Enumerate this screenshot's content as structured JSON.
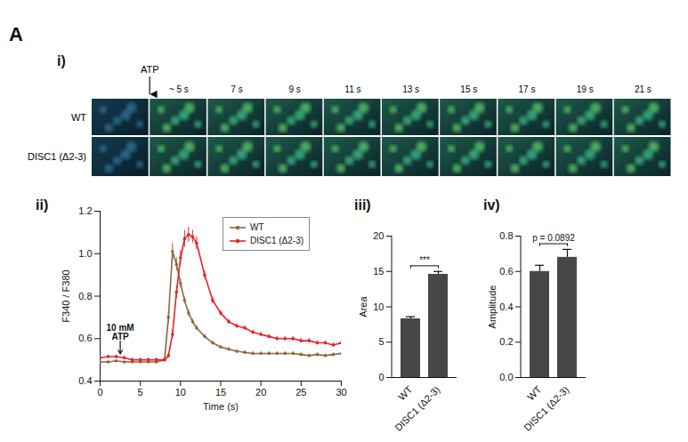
{
  "panel_label": "A",
  "chart_data": [
    {
      "type": "image_strip",
      "title": "i)",
      "marker_label": "ATP",
      "frame_labels": [
        null,
        "~ 5 s",
        "7 s",
        "9 s",
        "11 s",
        "13 s",
        "15 s",
        "17 s",
        "19 s",
        "21 s"
      ],
      "rows": [
        "WT",
        "DISC1 (Δ2-3)"
      ]
    },
    {
      "type": "line",
      "title": "ii)",
      "x_label": "Time (s)",
      "y_label": "F340 / F380",
      "xlim": [
        0,
        30
      ],
      "xticks": [
        0,
        5,
        10,
        15,
        20,
        25,
        30
      ],
      "ylim": [
        0.4,
        1.2
      ],
      "yticks": [
        0.4,
        0.6,
        0.8,
        {
          "value": 1,
          "label": "1.0"
        },
        1.2
      ],
      "legend": "top-right",
      "marker": "circle",
      "annotations": [
        {
          "text": [
            "10 mM",
            "ATP"
          ],
          "x": 2.5,
          "y": 0.52
        }
      ],
      "x": [
        0,
        1,
        2,
        3,
        4,
        5,
        6,
        7,
        8,
        8.5,
        9,
        9.5,
        10,
        10.5,
        11,
        11.5,
        12,
        13,
        14,
        15,
        16,
        17,
        18,
        19,
        20,
        21,
        22,
        23,
        24,
        25,
        26,
        27,
        28,
        29,
        30
      ],
      "series": [
        {
          "name": "WT",
          "color": "#8c6a3c",
          "values": [
            0.49,
            0.49,
            0.495,
            0.49,
            0.49,
            0.49,
            0.49,
            0.49,
            0.5,
            0.7,
            1.01,
            0.95,
            0.86,
            0.78,
            0.72,
            0.68,
            0.65,
            0.61,
            0.58,
            0.56,
            0.55,
            0.54,
            0.535,
            0.53,
            0.53,
            0.53,
            0.53,
            0.53,
            0.53,
            0.525,
            0.52,
            0.525,
            0.52,
            0.525,
            0.53
          ],
          "errors": [
            0.005,
            0.005,
            0.005,
            0.005,
            0.005,
            0.005,
            0.005,
            0.005,
            0.005,
            0.03,
            0.04,
            0.03,
            0.02,
            0.015,
            0.015,
            0.012,
            0.012,
            0.01,
            0.01,
            0.008,
            0.008,
            0.008,
            0.008,
            0.008,
            0.008,
            0.008,
            0.008,
            0.008,
            0.008,
            0.008,
            0.008,
            0.008,
            0.008,
            0.008,
            0.008
          ]
        },
        {
          "name": "DISC1 (Δ2-3)",
          "color": "#e8202a",
          "values": [
            0.51,
            0.515,
            0.515,
            0.51,
            0.5,
            0.5,
            0.5,
            0.5,
            0.5,
            0.52,
            0.62,
            0.82,
            0.98,
            1.07,
            1.09,
            1.08,
            1.05,
            0.9,
            0.78,
            0.72,
            0.68,
            0.66,
            0.65,
            0.63,
            0.62,
            0.61,
            0.6,
            0.6,
            0.6,
            0.59,
            0.59,
            0.58,
            0.58,
            0.57,
            0.58
          ],
          "errors": [
            0.008,
            0.008,
            0.008,
            0.008,
            0.008,
            0.008,
            0.008,
            0.008,
            0.008,
            0.01,
            0.02,
            0.03,
            0.035,
            0.04,
            0.035,
            0.03,
            0.03,
            0.02,
            0.015,
            0.012,
            0.01,
            0.01,
            0.01,
            0.01,
            0.01,
            0.01,
            0.01,
            0.01,
            0.01,
            0.01,
            0.01,
            0.01,
            0.01,
            0.01,
            0.01
          ]
        }
      ]
    },
    {
      "type": "bar",
      "title": "iii)",
      "y_label": "Area",
      "categories": [
        "WT",
        "DISC1 (Δ2-3)"
      ],
      "values": [
        8.3,
        14.6
      ],
      "errors": [
        0.3,
        0.4
      ],
      "color": "#474747",
      "ylim": [
        0,
        20
      ],
      "yticks": [
        0,
        5,
        10,
        15,
        20
      ],
      "annotations": [
        {
          "text": "***"
        }
      ]
    },
    {
      "type": "bar",
      "title": "iv)",
      "y_label": "Amplitude",
      "categories": [
        "WT",
        "DISC1 (Δ2-3)"
      ],
      "values": [
        0.6,
        0.68
      ],
      "errors": [
        0.035,
        0.045
      ],
      "color": "#474747",
      "ylim": [
        0,
        0.8
      ],
      "yticks": [
        {
          "value": 0,
          "label": "0.0"
        },
        0.2,
        0.4,
        0.6,
        0.8
      ],
      "annotations": [
        {
          "text": "p = 0.0892"
        }
      ]
    }
  ]
}
